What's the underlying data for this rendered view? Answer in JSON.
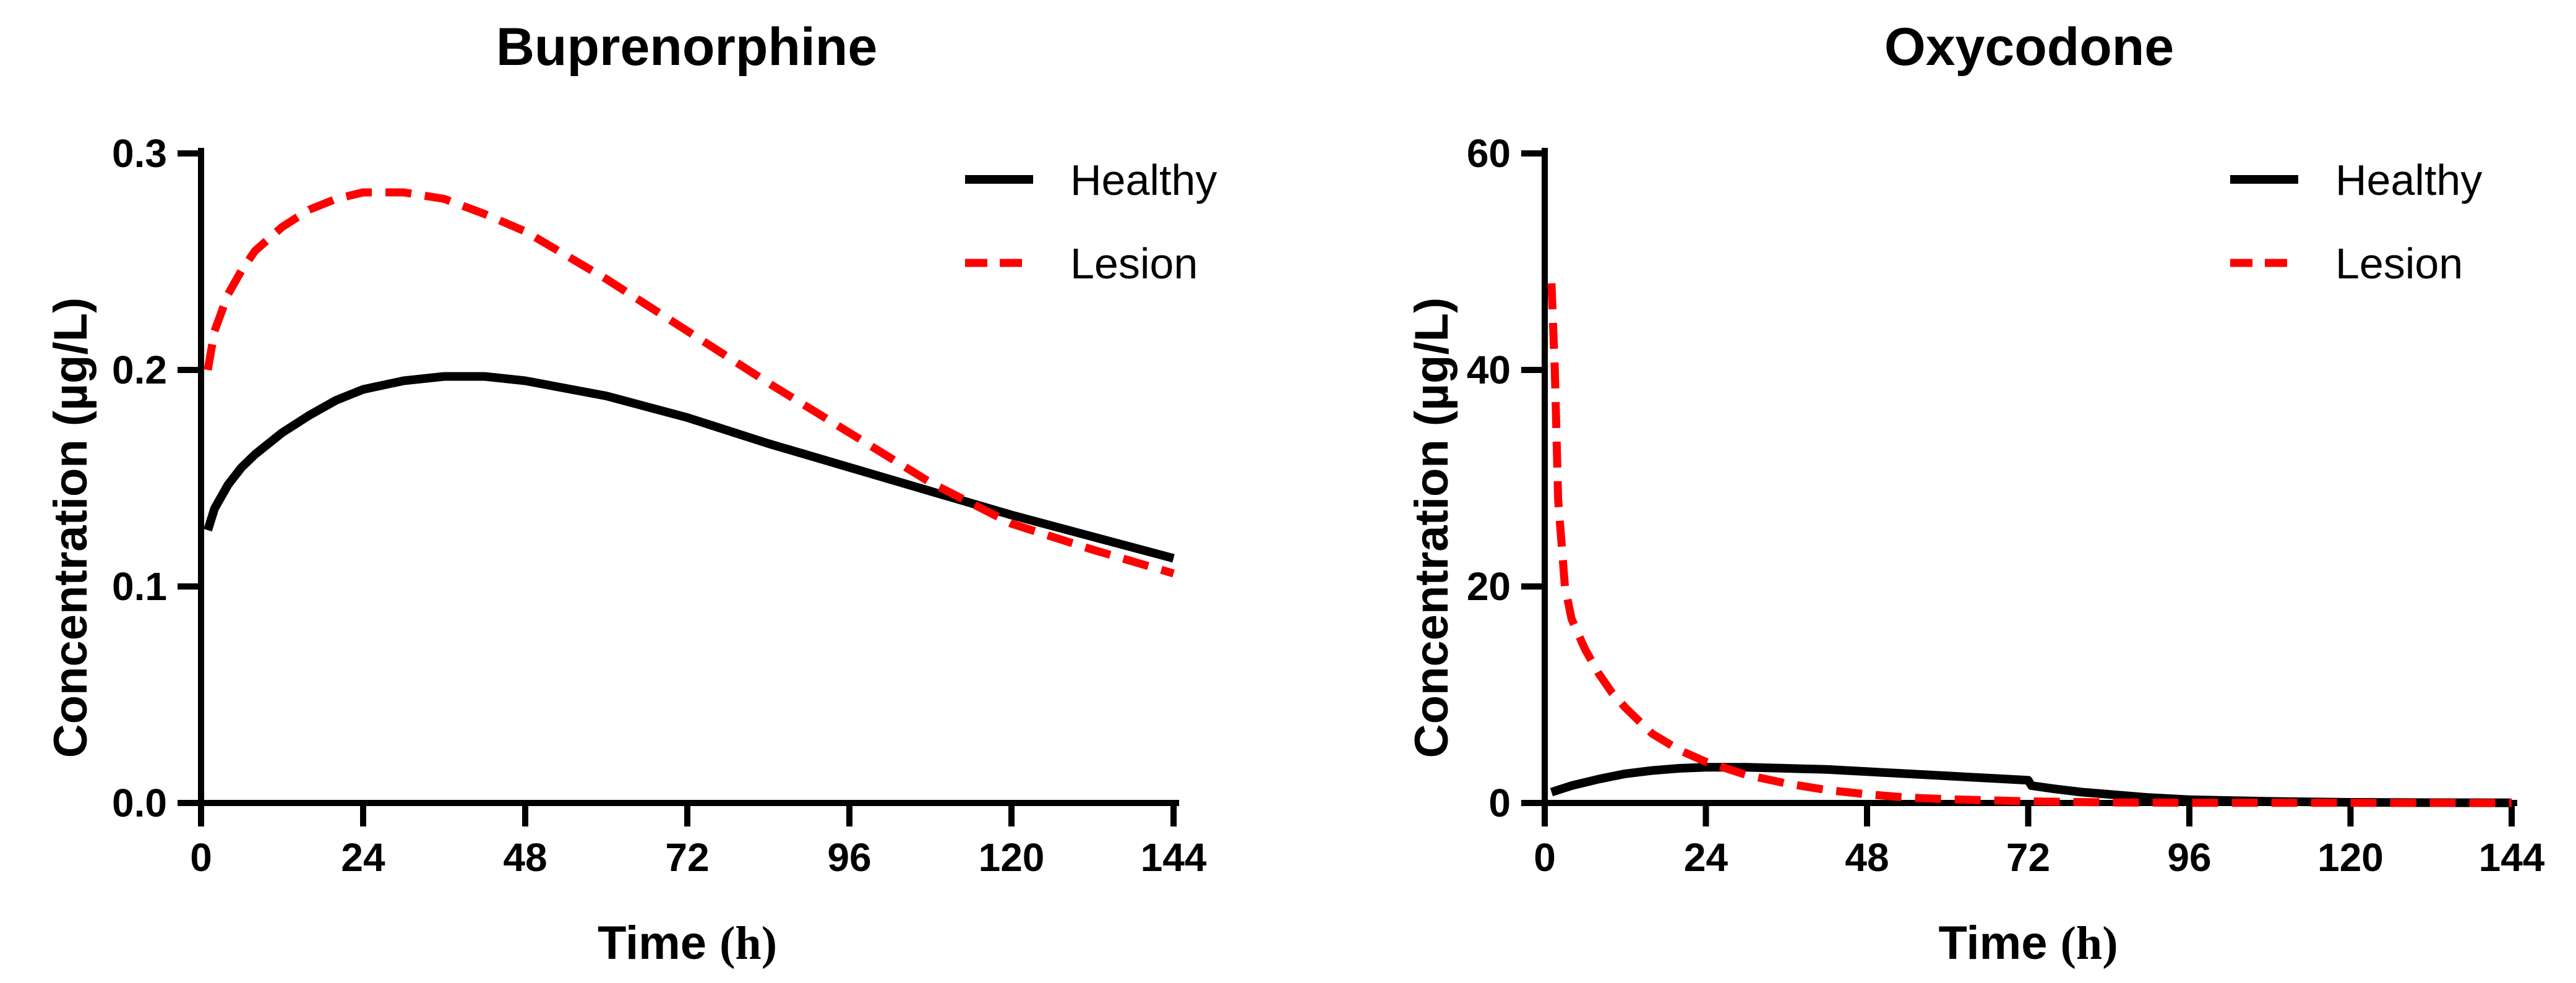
{
  "chart_data": [
    {
      "type": "line",
      "title": "Buprenorphine",
      "xlabel": "Time",
      "xlabel_unit": "(h)",
      "ylabel": "Concentration (µg/L)",
      "xlim": [
        0,
        144
      ],
      "ylim": [
        0,
        0.3
      ],
      "xticks": [
        0,
        24,
        48,
        72,
        96,
        120,
        144
      ],
      "xtick_labels": [
        "0",
        "24",
        "48",
        "72",
        "96",
        "120",
        "144"
      ],
      "yticks": [
        0,
        0.1,
        0.2,
        0.3
      ],
      "ytick_labels": [
        "0.0",
        "0.1",
        "0.2",
        "0.3"
      ],
      "legend_position": "top-right",
      "series": [
        {
          "name": "Healthy",
          "style": "solid",
          "color": "#000000",
          "x": [
            1,
            2,
            4,
            6,
            8,
            12,
            16,
            20,
            24,
            30,
            36,
            42,
            48,
            60,
            72,
            84,
            96,
            108,
            120,
            132,
            144
          ],
          "y": [
            0.126,
            0.136,
            0.147,
            0.155,
            0.161,
            0.171,
            0.179,
            0.186,
            0.191,
            0.195,
            0.197,
            0.197,
            0.195,
            0.188,
            0.178,
            0.166,
            0.155,
            0.144,
            0.133,
            0.123,
            0.113
          ]
        },
        {
          "name": "Lesion",
          "style": "dashed",
          "color": "#ff0000",
          "x": [
            1,
            2,
            4,
            6,
            8,
            12,
            16,
            20,
            24,
            30,
            36,
            42,
            48,
            60,
            72,
            84,
            96,
            108,
            120,
            132,
            144
          ],
          "y": [
            0.2,
            0.218,
            0.235,
            0.246,
            0.255,
            0.266,
            0.274,
            0.279,
            0.282,
            0.282,
            0.279,
            0.272,
            0.264,
            0.242,
            0.218,
            0.194,
            0.171,
            0.148,
            0.129,
            0.117,
            0.106
          ]
        }
      ]
    },
    {
      "type": "line",
      "title": "Oxycodone",
      "xlabel": "Time",
      "xlabel_unit": "(h)",
      "ylabel": "Concentration (µg/L)",
      "xlim": [
        0,
        144
      ],
      "ylim": [
        0,
        60
      ],
      "xticks": [
        0,
        24,
        48,
        72,
        96,
        120,
        144
      ],
      "xtick_labels": [
        "0",
        "24",
        "48",
        "72",
        "96",
        "120",
        "144"
      ],
      "yticks": [
        0,
        20,
        40,
        60
      ],
      "ytick_labels": [
        "0",
        "20",
        "40",
        "60"
      ],
      "legend_position": "top-right",
      "series": [
        {
          "name": "Healthy",
          "style": "solid",
          "color": "#000000",
          "x": [
            1,
            4,
            8,
            12,
            16,
            20,
            24,
            30,
            36,
            42,
            48,
            54,
            60,
            66,
            72,
            72.5,
            76,
            80,
            84,
            90,
            96,
            108,
            120,
            132,
            144
          ],
          "y": [
            1.0,
            1.6,
            2.2,
            2.7,
            3.0,
            3.2,
            3.3,
            3.3,
            3.2,
            3.1,
            2.9,
            2.7,
            2.5,
            2.3,
            2.1,
            1.6,
            1.3,
            1.0,
            0.8,
            0.5,
            0.3,
            0.15,
            0.06,
            0.03,
            0.01
          ]
        },
        {
          "name": "Lesion",
          "style": "dashed",
          "color": "#ff0000",
          "x": [
            1,
            1.5,
            2,
            3,
            4,
            6,
            8,
            10,
            12,
            16,
            20,
            24,
            30,
            36,
            42,
            48,
            54,
            60,
            72,
            84,
            96,
            120,
            144
          ],
          "y": [
            48,
            40,
            28,
            20,
            17,
            14.2,
            12,
            10.2,
            8.8,
            6.4,
            4.9,
            3.8,
            2.6,
            1.8,
            1.2,
            0.8,
            0.5,
            0.35,
            0.15,
            0.05,
            0.02,
            0.01,
            0.0
          ]
        }
      ]
    }
  ]
}
